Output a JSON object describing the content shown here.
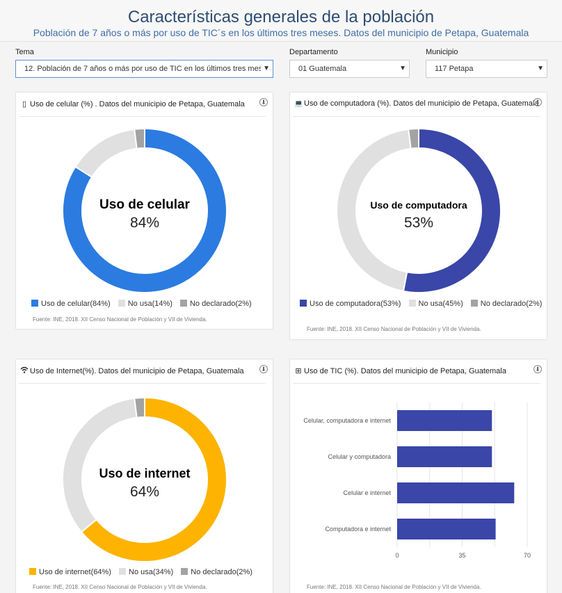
{
  "header": {
    "title": "Características generales de la población",
    "subtitle": "Población de 7 años o más por uso de TIC´s en los últimos tres meses. Datos del municipio de Petapa, Guatemala"
  },
  "filters": {
    "tema_label": "Tema",
    "tema_value": "12. Población de 7 años o más por uso de TIC en los últimos tres meses",
    "departamento_label": "Departamento",
    "departamento_value": "01 Guatemala",
    "municipio_label": "Municipio",
    "municipio_value": "117 Petapa"
  },
  "icons": {
    "caret": "▼",
    "download": "⬇",
    "phone": "▯",
    "laptop": "💻",
    "wifi": "📶",
    "network": "⊞"
  },
  "colors": {
    "celular": "#2b7be0",
    "computadora": "#3a46a8",
    "internet": "#fdb300",
    "no_usa": "#e0e0e0",
    "no_declarado": "#a3a3a3",
    "tic_bar": "#3a46a8"
  },
  "source_text": "Fuente: INE, 2018. XII Censo Nacional de Población y VII de Vivienda.",
  "chart_data": [
    {
      "type": "pie",
      "title": "Uso de celular (%) . Datos del municipio de Petapa, Guatemala",
      "center_label": "Uso de celular",
      "center_value": "84%",
      "slices": [
        {
          "label": "Uso de celular",
          "value": 84,
          "legend": "Uso de celular(84%)"
        },
        {
          "label": "No usa",
          "value": 14,
          "legend": "No usa(14%)"
        },
        {
          "label": "No declarado",
          "value": 2,
          "legend": "No declarado(2%)"
        }
      ]
    },
    {
      "type": "pie",
      "title": "Uso de computadora (%). Datos del municipio de Petapa, Guatemala",
      "center_label": "Uso de computadora",
      "center_value": "53%",
      "slices": [
        {
          "label": "Uso de computadora",
          "value": 53,
          "legend": "Uso de computadora(53%)"
        },
        {
          "label": "No usa",
          "value": 45,
          "legend": "No usa(45%)"
        },
        {
          "label": "No declarado",
          "value": 2,
          "legend": "No declarado(2%)"
        }
      ]
    },
    {
      "type": "pie",
      "title": "Uso de Internet(%). Datos del municipio de Petapa, Guatemala",
      "center_label": "Uso de internet",
      "center_value": "64%",
      "slices": [
        {
          "label": "Uso de internet",
          "value": 64,
          "legend": "Uso de internet(64%)"
        },
        {
          "label": "No usa",
          "value": 34,
          "legend": "No usa(34%)"
        },
        {
          "label": "No declarado",
          "value": 2,
          "legend": "No declarado(2%)"
        }
      ]
    },
    {
      "type": "bar",
      "orientation": "horizontal",
      "title": "Uso de TIC (%). Datos del municipio de Petapa, Guatemala",
      "categories": [
        "Celular, computadora e internet",
        "Celular y computadora",
        "Celular e internet",
        "Computadora e internet"
      ],
      "values": [
        51,
        51,
        63,
        53
      ],
      "xlim": [
        0,
        70
      ],
      "xticks": [
        "0",
        "35",
        "70"
      ],
      "grid": true
    }
  ]
}
